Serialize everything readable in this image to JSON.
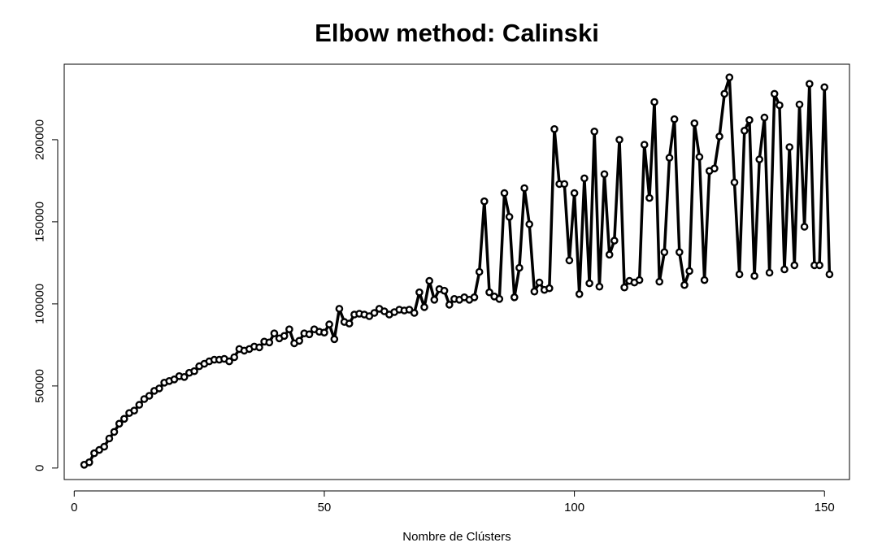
{
  "chart_data": {
    "type": "line",
    "title": "Elbow method: Calinski",
    "xlabel": "Nombre de Clústers",
    "ylabel": "",
    "xlim": [
      -2,
      155
    ],
    "ylim": [
      -7000,
      246000
    ],
    "xticks": [
      0,
      50,
      100,
      150
    ],
    "yticks": [
      0,
      50000,
      100000,
      150000,
      200000
    ],
    "line_color": "#000000",
    "marker": "open-circle",
    "grid": false,
    "legend": "none",
    "x": [
      2,
      3,
      4,
      5,
      6,
      7,
      8,
      9,
      10,
      11,
      12,
      13,
      14,
      15,
      16,
      17,
      18,
      19,
      20,
      21,
      22,
      23,
      24,
      25,
      26,
      27,
      28,
      29,
      30,
      31,
      32,
      33,
      34,
      35,
      36,
      37,
      38,
      39,
      40,
      41,
      42,
      43,
      44,
      45,
      46,
      47,
      48,
      49,
      50,
      51,
      52,
      53,
      54,
      55,
      56,
      57,
      58,
      59,
      60,
      61,
      62,
      63,
      64,
      65,
      66,
      67,
      68,
      69,
      70,
      71,
      72,
      73,
      74,
      75,
      76,
      77,
      78,
      79,
      80,
      81,
      82,
      83,
      84,
      85,
      86,
      87,
      88,
      89,
      90,
      91,
      92,
      93,
      94,
      95,
      96,
      97,
      98,
      99,
      100,
      101,
      102,
      103,
      104,
      105,
      106,
      107,
      108,
      109,
      110,
      111,
      112,
      113,
      114,
      115,
      116,
      117,
      118,
      119,
      120,
      121,
      122,
      123,
      124,
      125,
      126,
      127,
      128,
      129,
      130,
      131,
      132,
      133,
      134,
      135,
      136,
      137,
      138,
      139,
      140,
      141,
      142,
      143,
      144,
      145,
      146,
      147,
      148,
      149,
      150,
      151
    ],
    "y": [
      2000,
      3500,
      9000,
      11000,
      13000,
      18000,
      22000,
      27000,
      30000,
      33500,
      35000,
      38500,
      42000,
      44000,
      47000,
      48500,
      52000,
      53000,
      54000,
      56000,
      55500,
      58000,
      59000,
      62000,
      63500,
      65000,
      66000,
      66000,
      66500,
      65000,
      67500,
      72500,
      71500,
      72500,
      74000,
      73500,
      77000,
      76500,
      82000,
      79000,
      80500,
      84500,
      76000,
      77500,
      82000,
      81500,
      84500,
      83000,
      82500,
      87500,
      78500,
      97000,
      89000,
      88000,
      93500,
      94000,
      93500,
      92500,
      94500,
      97000,
      95500,
      93500,
      95000,
      96500,
      96000,
      96500,
      94500,
      107000,
      98000,
      114000,
      102500,
      109000,
      108000,
      99500,
      103000,
      102500,
      104000,
      102500,
      104000,
      119500,
      162500,
      107000,
      104500,
      103000,
      167500,
      153000,
      104000,
      122000,
      170500,
      148500,
      107500,
      113000,
      108500,
      109500,
      206500,
      173000,
      173000,
      126500,
      167500,
      106000,
      176500,
      112500,
      205000,
      110500,
      179000,
      130000,
      138500,
      200000,
      110000,
      114000,
      113000,
      114500,
      197000,
      164500,
      223000,
      113500,
      131500,
      189000,
      212500,
      131500,
      111500,
      120000,
      210000,
      189500,
      114500,
      181000,
      182500,
      202000,
      228000,
      238000,
      174000,
      118000,
      205500,
      212000,
      117000,
      188000,
      213500,
      119000,
      228000,
      221000,
      121000,
      195500,
      123500,
      221500,
      147000,
      234000,
      123500,
      123500,
      232000,
      118000
    ]
  }
}
